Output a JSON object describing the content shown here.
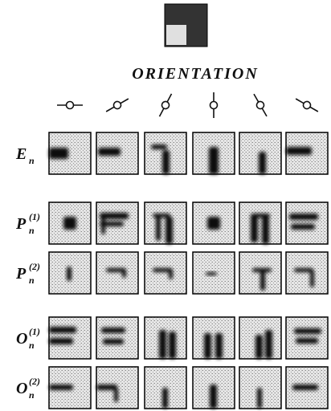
{
  "title": "ORIENTATION",
  "rows": [
    {
      "base": "E",
      "sub": "n"
    },
    {
      "base": "P",
      "sub": "n",
      "sup": "(1)"
    },
    {
      "base": "P",
      "sub": "n",
      "sup": "(2)"
    },
    {
      "base": "O",
      "sub": "n",
      "sup": "(1)"
    },
    {
      "base": "O",
      "sub": "n",
      "sup": "(2)"
    }
  ]
}
